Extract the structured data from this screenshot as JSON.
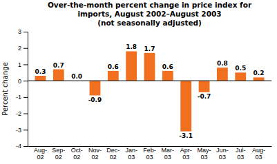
{
  "chart_data": {
    "type": "bar",
    "title": "Over-the-month percent change in price index for\nimports, August 2002–August 2003\n(not seasonally adjusted)",
    "y_label": "Percent change",
    "categories": [
      "Aug-\n02",
      "Sep-\n02",
      "Oct-\n02",
      "Nov-\n02",
      "Dec-\n02",
      "Jan-\n03",
      "Feb-\n03",
      "Mar-\n03",
      "Apr-\n03",
      "May-\n03",
      "Jun-\n03",
      "Jul-\n03",
      "Aug-\n03"
    ],
    "values": [
      0.3,
      0.7,
      0.0,
      -0.9,
      0.6,
      1.8,
      1.7,
      0.6,
      -3.1,
      -0.7,
      0.8,
      0.5,
      0.2
    ],
    "value_labels": [
      "0.3",
      "0.7",
      "0.0",
      "-0.9",
      "0.6",
      "1.8",
      "1.7",
      "0.6",
      "-3.1",
      "-0.7",
      "0.8",
      "0.5",
      "0.2"
    ],
    "color": "#F07020",
    "ylim": [
      -4,
      3
    ],
    "yticks": [
      -4,
      -3,
      -2,
      -1,
      0,
      1,
      2,
      3
    ],
    "grid": false,
    "data_labels": true
  }
}
